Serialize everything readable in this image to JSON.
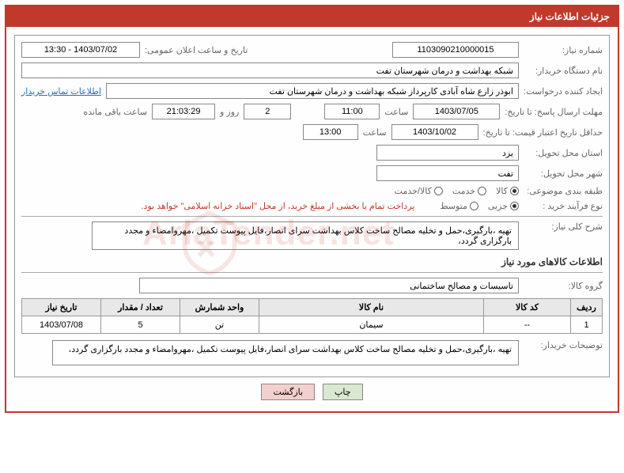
{
  "header": {
    "title": "جزئیات اطلاعات نیاز"
  },
  "fields": {
    "need_number_label": "شماره نیاز:",
    "need_number": "1103090210000015",
    "announce_date_label": "تاریخ و ساعت اعلان عمومی:",
    "announce_date": "1403/07/02 - 13:30",
    "buyer_device_label": "نام دستگاه خریدار:",
    "buyer_device": "شبکه بهداشت و درمان شهرستان تفت",
    "creator_label": "ایجاد کننده درخواست:",
    "creator": "ابوذر زارع شاه آبادی کارپرداز شبکه بهداشت و درمان شهرستان تفت",
    "contact_link": "اطلاعات تماس خریدار",
    "response_deadline_label": "مهلت ارسال پاسخ: تا تاریخ:",
    "response_date": "1403/07/05",
    "response_time": "11:00",
    "time_label": "ساعت",
    "days_remaining": "2",
    "days_and": "روز و",
    "hours_remaining": "21:03:29",
    "hours_label": "ساعت باقی مانده",
    "price_validity_label": "حداقل تاریخ اعتبار قیمت: تا تاریخ:",
    "price_validity_date": "1403/10/02",
    "price_validity_time": "13:00",
    "delivery_province_label": "استان محل تحویل:",
    "delivery_province": "یزد",
    "delivery_city_label": "شهر محل تحویل:",
    "delivery_city": "تفت",
    "category_label": "طبقه بندی موضوعی:",
    "r1": "کالا",
    "r2": "خدمت",
    "r3": "کالا/خدمت",
    "process_type_label": "نوع فرآیند خرید :",
    "p1": "جزیی",
    "p2": "متوسط",
    "payment_note": "پرداخت تمام یا بخشی از مبلغ خرید، از محل \"اسناد خزانه اسلامی\" خواهد بود.",
    "need_desc_label": "شرح کلی نیاز:",
    "need_desc": "تهیه ،بارگیری،حمل و تخلیه مصالح ساخت کلاس بهداشت سرای انصار،فایل پیوست تکمیل ،مهروامضاء و مجدد بارگزاری گردد،",
    "goods_info_title": "اطلاعات کالاهای مورد نیاز",
    "goods_group_label": "گروه کالا:",
    "goods_group": "تاسیسات و مصالح ساختمانی",
    "buyer_notes_label": "توضیحات خریدار:",
    "buyer_notes": "تهیه ،بارگیری،حمل و تخلیه مصالح ساخت کلاس بهداشت سرای انصار،فایل پیوست تکمیل ،مهروامضاء و مجدد بارگزاری گردد،"
  },
  "table": {
    "headers": {
      "row": "ردیف",
      "code": "کد کالا",
      "name": "نام کالا",
      "unit": "واحد شمارش",
      "qty": "تعداد / مقدار",
      "date": "تاریخ نیاز"
    },
    "rows": [
      {
        "row": "1",
        "code": "--",
        "name": "سیمان",
        "unit": "تن",
        "qty": "5",
        "date": "1403/07/08"
      }
    ]
  },
  "buttons": {
    "print": "چاپ",
    "back": "بازگشت"
  },
  "watermark": "ArlaTender.net"
}
